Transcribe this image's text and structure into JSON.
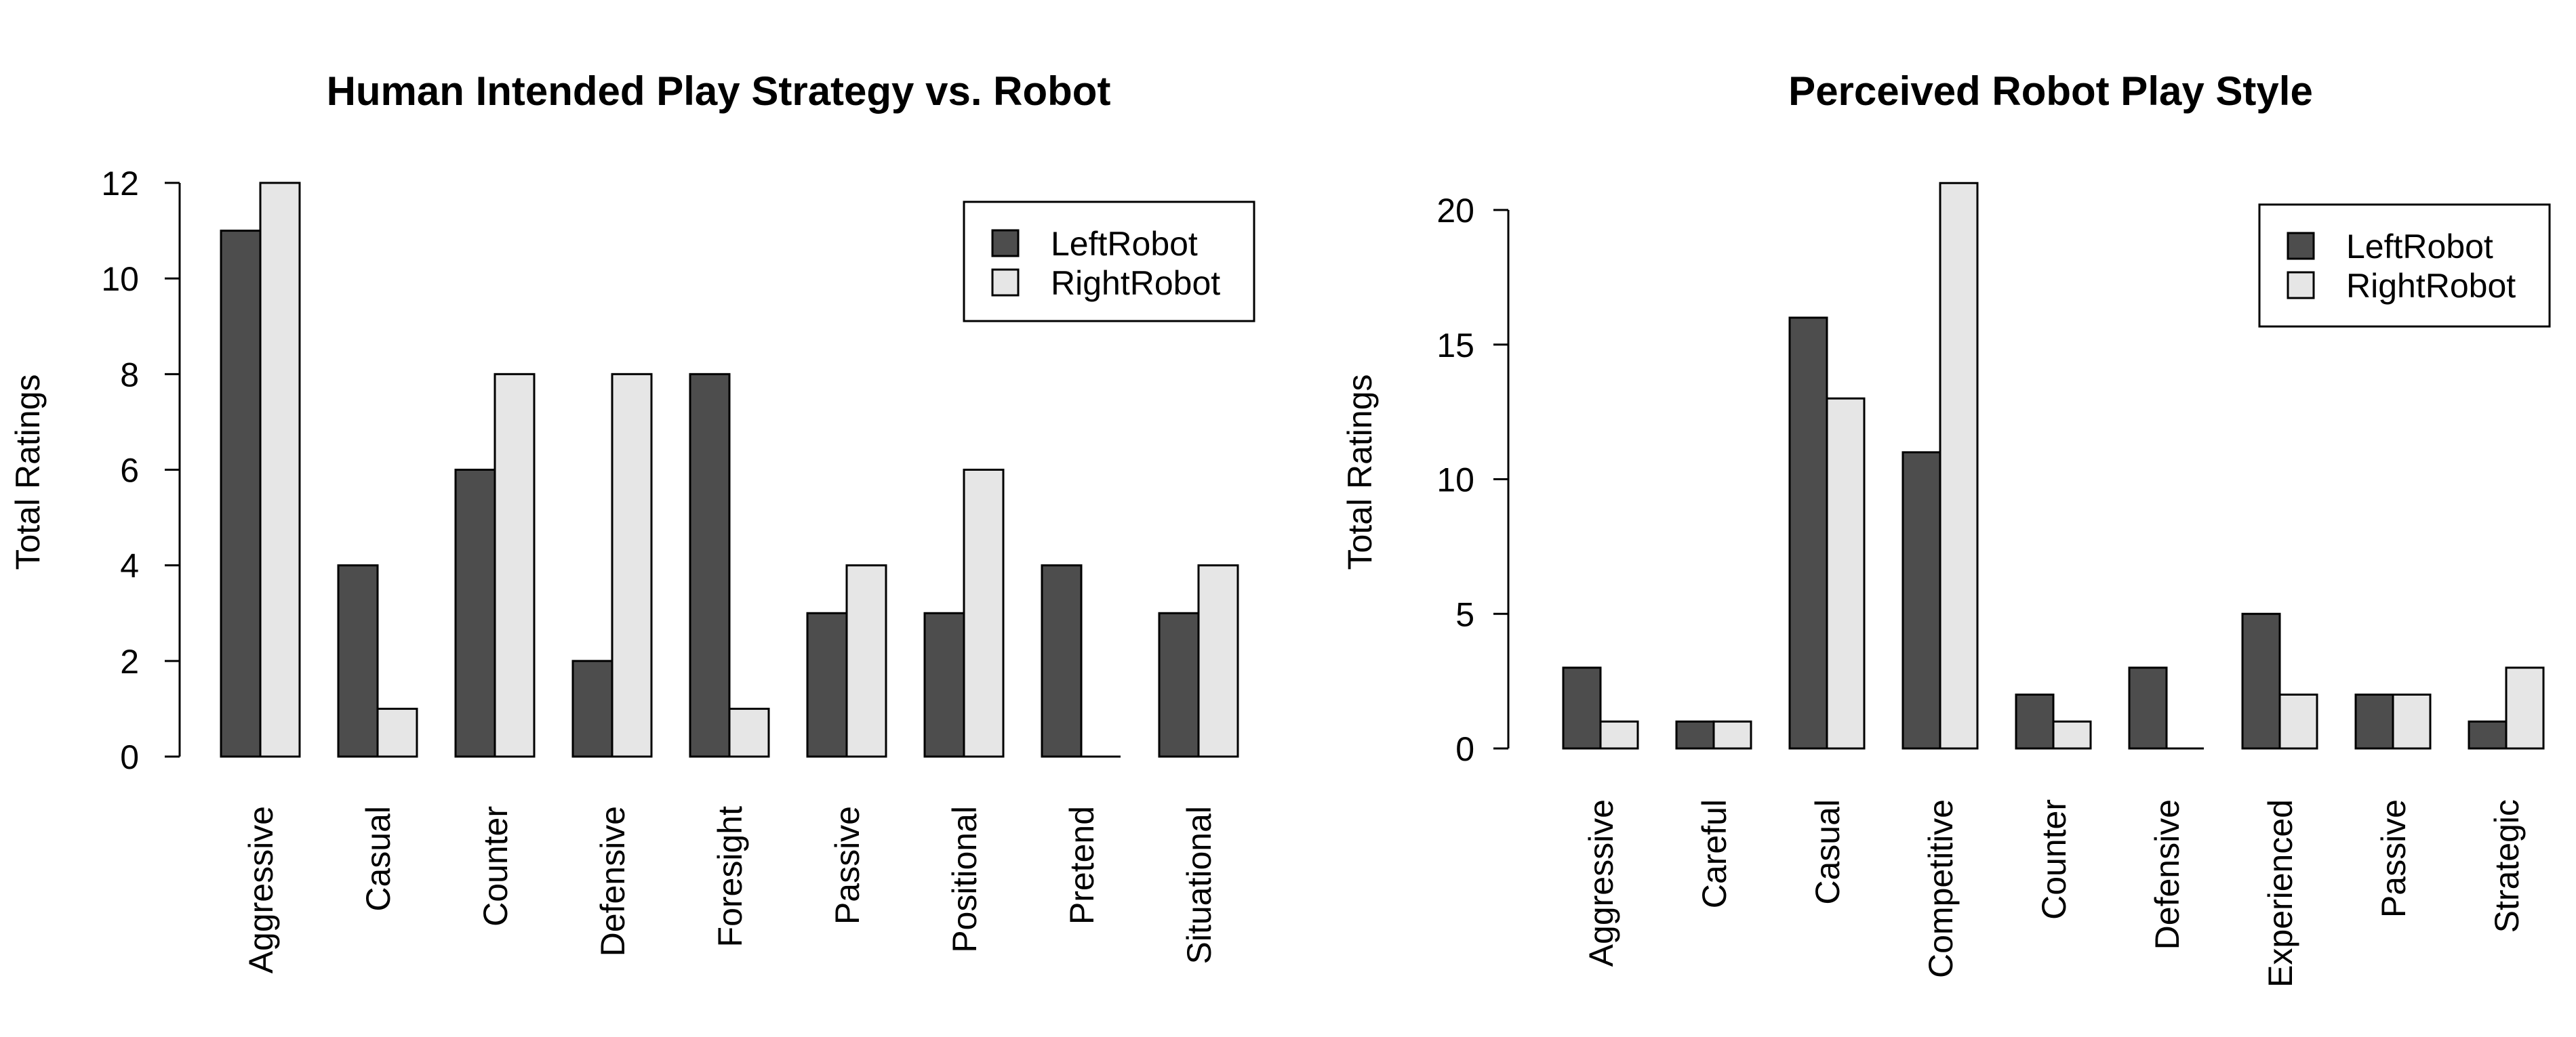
{
  "chart_data": [
    {
      "type": "bar",
      "title": "Human Intended Play Strategy vs. Robot",
      "ylabel": "Total Ratings",
      "xlabel": "",
      "ylim": [
        0,
        12
      ],
      "yticks": [
        0,
        2,
        4,
        6,
        8,
        10,
        12
      ],
      "legend_position": "top-right",
      "categories": [
        "Aggressive",
        "Casual",
        "Counter",
        "Defensive",
        "Foresight",
        "Passive",
        "Positional",
        "Pretend",
        "Situational"
      ],
      "series": [
        {
          "name": "LeftRobot",
          "color": "#4d4d4d",
          "values": [
            11,
            4,
            6,
            2,
            8,
            3,
            3,
            4,
            3
          ]
        },
        {
          "name": "RightRobot",
          "color": "#e6e6e6",
          "values": [
            12,
            1,
            8,
            8,
            1,
            4,
            6,
            0,
            4
          ]
        }
      ]
    },
    {
      "type": "bar",
      "title": "Perceived Robot Play Style",
      "ylabel": "Total Ratings",
      "xlabel": "",
      "ylim": [
        0,
        20
      ],
      "yticks": [
        0,
        5,
        10,
        15,
        20
      ],
      "legend_position": "top-right",
      "categories": [
        "Aggressive",
        "Careful",
        "Casual",
        "Competitive",
        "Counter",
        "Defensive",
        "Experienced",
        "Passive",
        "Strategic"
      ],
      "series": [
        {
          "name": "LeftRobot",
          "color": "#4d4d4d",
          "values": [
            3,
            1,
            16,
            11,
            2,
            3,
            5,
            2,
            1
          ]
        },
        {
          "name": "RightRobot",
          "color": "#e6e6e6",
          "values": [
            1,
            1,
            13,
            21,
            1,
            0,
            2,
            2,
            3
          ]
        }
      ]
    }
  ]
}
